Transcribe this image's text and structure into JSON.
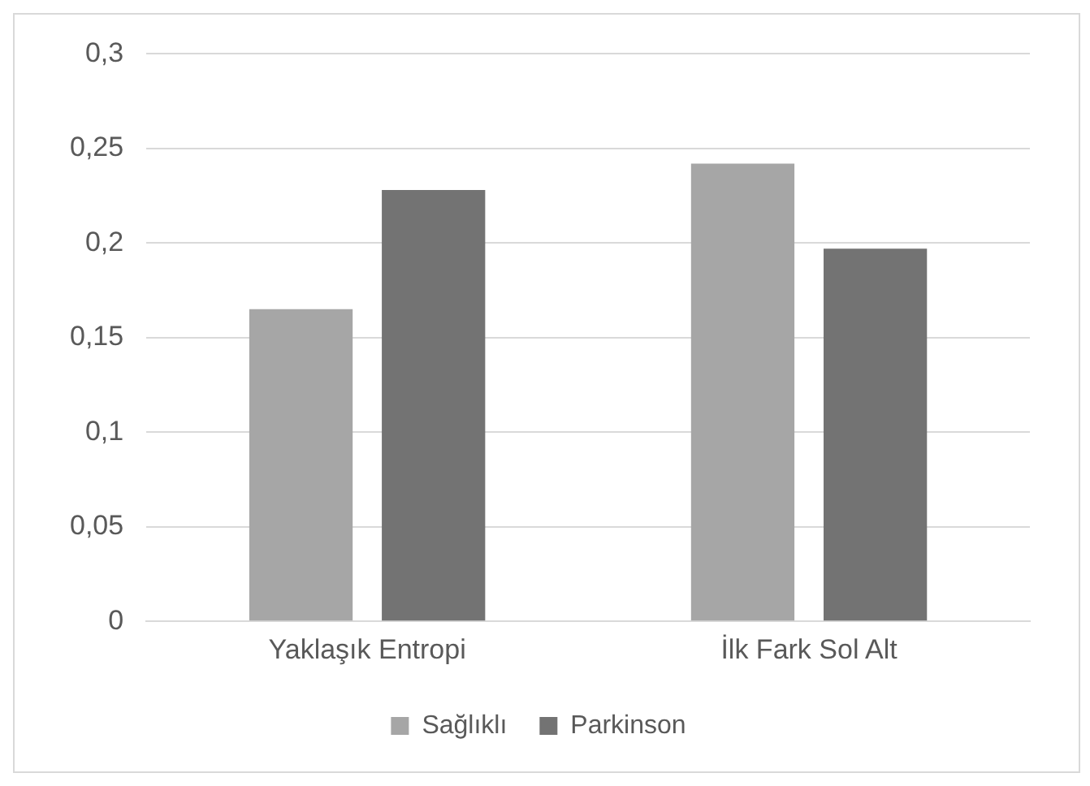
{
  "chart_data": {
    "type": "bar",
    "categories": [
      "Yaklaşık Entropi",
      "İlk Fark Sol Alt"
    ],
    "series": [
      {
        "name": "Sağlıklı",
        "color": "#a6a6a6",
        "values": [
          0.165,
          0.242
        ]
      },
      {
        "name": "Parkinson",
        "color": "#737373",
        "values": [
          0.228,
          0.197
        ]
      }
    ],
    "ylim": [
      0,
      0.3
    ],
    "yticks": [
      {
        "value": 0,
        "label": "0"
      },
      {
        "value": 0.05,
        "label": "0,05"
      },
      {
        "value": 0.1,
        "label": "0,1"
      },
      {
        "value": 0.15,
        "label": "0,15"
      },
      {
        "value": 0.2,
        "label": "0,2"
      },
      {
        "value": 0.25,
        "label": "0,25"
      },
      {
        "value": 0.3,
        "label": "0,3"
      }
    ],
    "grid": "y",
    "legend": "bottom"
  }
}
